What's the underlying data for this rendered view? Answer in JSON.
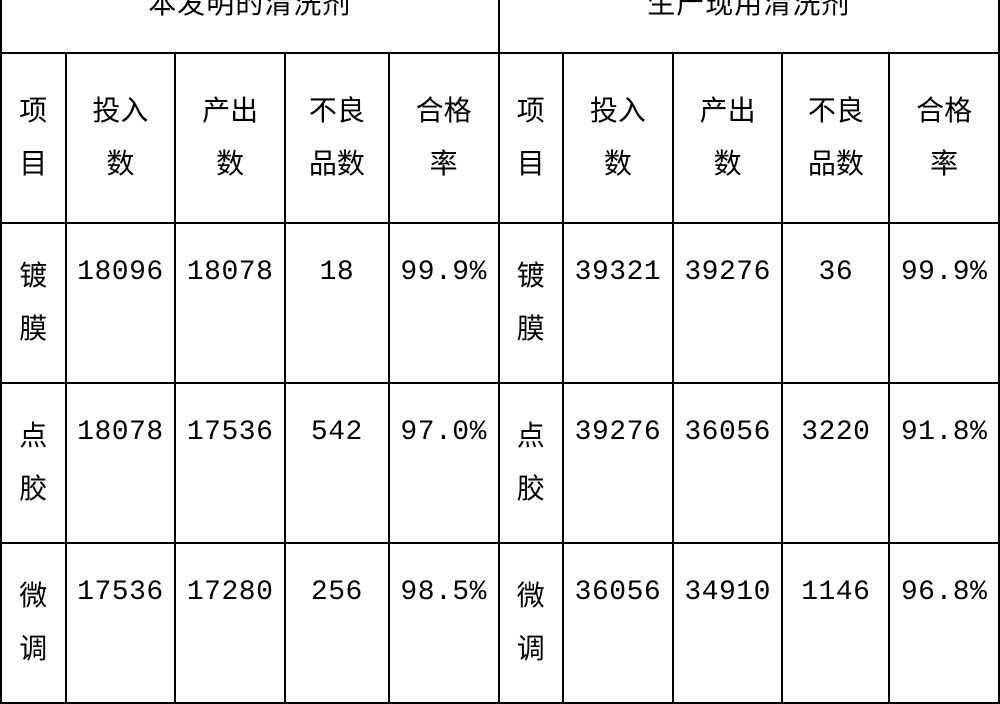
{
  "table": {
    "border_color": "#000000",
    "background_color": "#ffffff",
    "text_color": "#000000",
    "group_headers": [
      "本发明的清洗剂",
      "生产现用清洗剂"
    ],
    "sub_headers": [
      "项目",
      "投入数",
      "产出数",
      "不良品数",
      "合格率",
      "项目",
      "投入数",
      "产出数",
      "不良品数",
      "合格率"
    ],
    "sub_headers_wrapped": [
      "项\n目",
      "投入\n数",
      "产出\n数",
      "不良\n品数",
      "合格\n率",
      "项\n目",
      "投入\n数",
      "产出\n数",
      "不良\n品数",
      "合格\n率"
    ],
    "col_widths_class": [
      "col-narrow",
      "col-wide",
      "col-wide",
      "col-wide",
      "col-wide",
      "col-narrow",
      "col-wide",
      "col-wide",
      "col-wide",
      "col-wide"
    ],
    "rows": [
      {
        "left": {
          "project": "镀膜",
          "project_wrapped": "镀\n膜",
          "input": "18096",
          "output": "18078",
          "defects": "18",
          "rate": "99.9%"
        },
        "right": {
          "project": "镀膜",
          "project_wrapped": "镀\n膜",
          "input": "39321",
          "output": "39276",
          "defects": "36",
          "rate": "99.9%"
        }
      },
      {
        "left": {
          "project": "点胶",
          "project_wrapped": "点\n胶",
          "input": "18078",
          "output": "17536",
          "defects": "542",
          "rate": "97.0%"
        },
        "right": {
          "project": "点胶",
          "project_wrapped": "点\n胶",
          "input": "39276",
          "output": "36056",
          "defects": "3220",
          "rate": "91.8%"
        }
      },
      {
        "left": {
          "project": "微调",
          "project_wrapped": "微\n调",
          "input": "17536",
          "output": "17280",
          "defects": "256",
          "rate": "98.5%"
        },
        "right": {
          "project": "微调",
          "project_wrapped": "微\n调",
          "input": "36056",
          "output": "34910",
          "defects": "1146",
          "rate": "96.8%"
        }
      }
    ]
  }
}
